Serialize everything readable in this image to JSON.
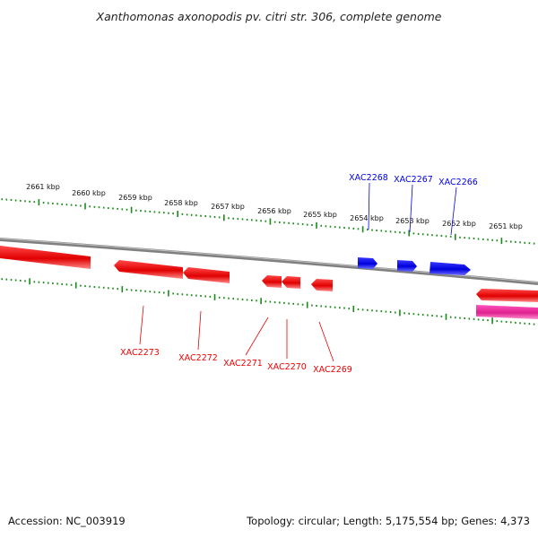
{
  "title": "Xanthomonas axonopodis pv. citri str. 306, complete genome",
  "footer": {
    "accession": "Accession: NC_003919",
    "stats": "Topology: circular; Length: 5,175,554 bp; Genes: 4,373"
  },
  "colors": {
    "forward_gene": "#0000ee",
    "reverse_gene": "#ee0000",
    "other_feature": "#e0309a",
    "backbone": "#808080",
    "tick": "#1a8a1a"
  },
  "kbp_labels": [
    "2661 kbp",
    "2660 kbp",
    "2659 kbp",
    "2658 kbp",
    "2657 kbp",
    "2656 kbp",
    "2655 kbp",
    "2654 kbp",
    "2653 kbp",
    "2652 kbp",
    "2651 kbp"
  ],
  "genes_forward": [
    "XAC2268",
    "XAC2267",
    "XAC2266"
  ],
  "genes_reverse": [
    "XAC2273",
    "XAC2272",
    "XAC2271",
    "XAC2270",
    "XAC2269"
  ]
}
